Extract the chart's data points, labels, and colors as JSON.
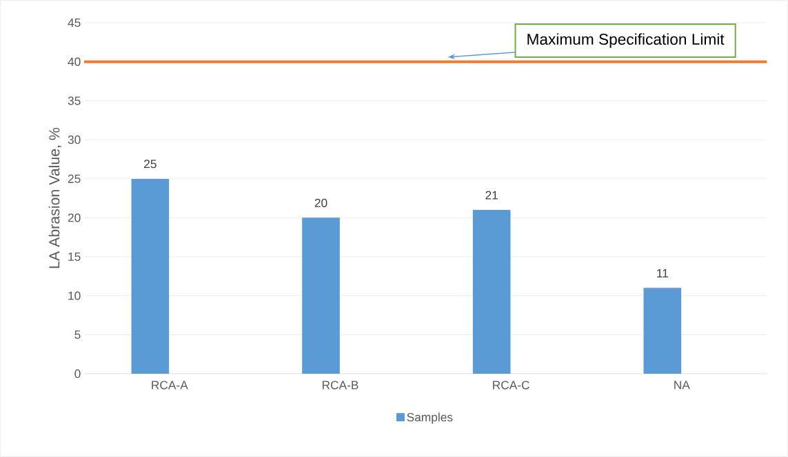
{
  "chart_data": {
    "type": "bar",
    "ylabel": "LA Abrasion Value, %",
    "categories": [
      "RCA-A",
      "RCA-B",
      "RCA-C",
      "NA"
    ],
    "series": [
      {
        "name": "Samples",
        "color": "#5b9bd5",
        "values": [
          25,
          20,
          21,
          11
        ]
      }
    ],
    "ylim": [
      0,
      45
    ],
    "yticks": [
      0,
      5,
      10,
      15,
      20,
      25,
      30,
      35,
      40,
      45
    ],
    "grid": "y",
    "legend": "bottom",
    "data_labels": true,
    "ref_lines": [
      {
        "axis": "y",
        "value": 40,
        "label": "Maximum Specification Limit",
        "color": "#ed7d31"
      }
    ]
  }
}
